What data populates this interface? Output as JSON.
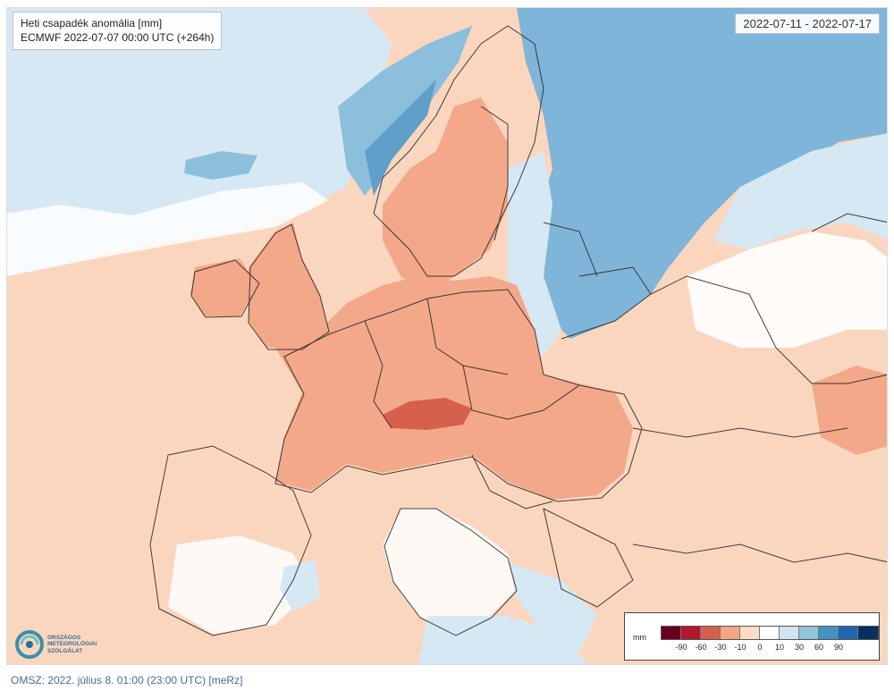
{
  "map": {
    "title": "Heti csapadék anomália [mm]",
    "subtitle": "ECMWF 2022-07-07 00:00 UTC (+264h)",
    "date_range": "2022-07-11 - 2022-07-17"
  },
  "logo": {
    "line1": "ORSZÁGOS",
    "line2": "METEOROLÓGIAI",
    "line3": "SZOLGÁLAT"
  },
  "legend": {
    "unit": "mm",
    "ticks": [
      "-90",
      "-60",
      "-30",
      "-10",
      "0",
      "10",
      "30",
      "60",
      "90"
    ],
    "colors": [
      "#67001f",
      "#b2182b",
      "#d6604d",
      "#f4a582",
      "#fddbc7",
      "#ffffff",
      "#d1e5f0",
      "#92c5de",
      "#4393c3",
      "#2166ac",
      "#053061"
    ]
  },
  "footer": "OMSZ: 2022. július 8. 01:00 (23:00  UTC)  [meRz]"
}
